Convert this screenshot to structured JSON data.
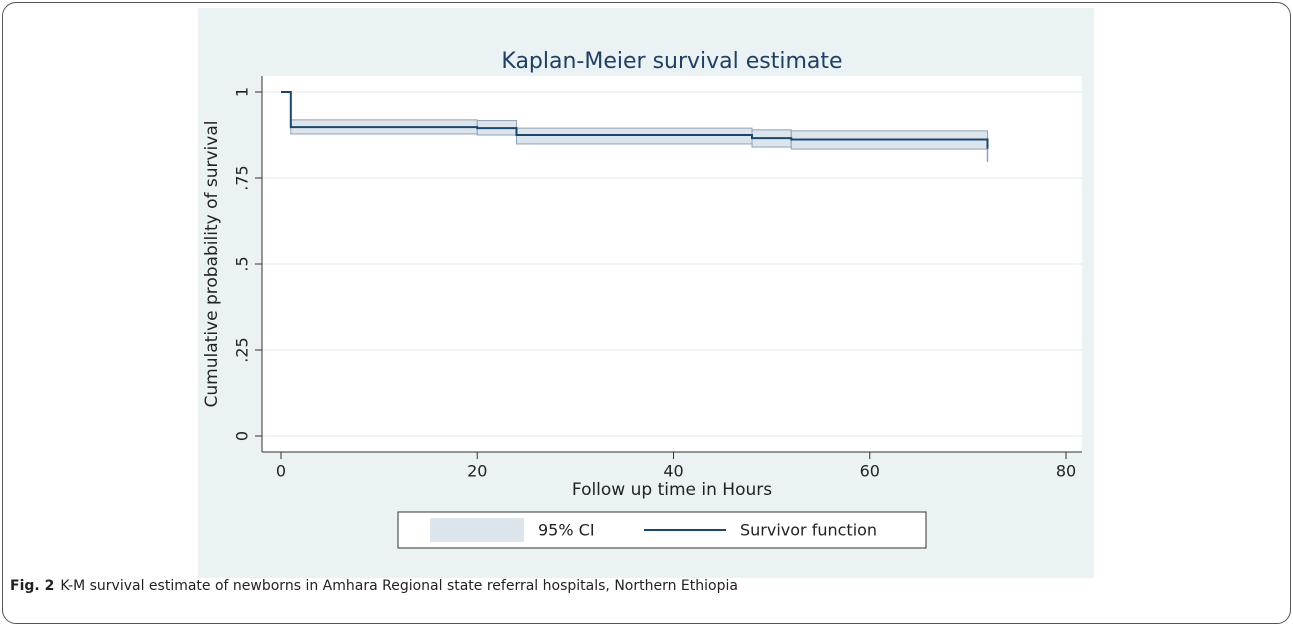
{
  "chart_data": {
    "type": "step",
    "title": "Kaplan-Meier survival estimate",
    "x_label": "Follow up time in Hours",
    "y_label": "Cumulative probability of survival",
    "x": [
      0,
      1,
      20,
      24,
      48,
      52,
      72
    ],
    "series": [
      {
        "name": "Survivor function",
        "color": "#1a476f",
        "values": [
          1,
          0.898,
          0.895,
          0.875,
          0.866,
          0.862,
          0.835
        ]
      },
      {
        "name": "95% CI",
        "color": "#dce5ec",
        "edge": "#8ca2b6",
        "upper": [
          null,
          0.919,
          0.917,
          0.895,
          0.89,
          0.887,
          0.87
        ],
        "lower": [
          null,
          0.878,
          0.875,
          0.849,
          0.84,
          0.834,
          0.797
        ]
      }
    ],
    "xlim": [
      0,
      80
    ],
    "xticks": [
      0,
      20,
      40,
      60,
      80
    ],
    "ylim": [
      0,
      1
    ],
    "yticks": [
      0,
      {
        "value": 0.25,
        "label": ".25"
      },
      {
        "value": 0.5,
        "label": ".5"
      },
      {
        "value": 0.75,
        "label": ".75"
      },
      1
    ],
    "grid": true
  },
  "caption": {
    "label": "Fig. 2",
    "text": "K-M survival estimate of newborns in Amhara Regional state referral hospitals, Northern Ethiopia"
  }
}
